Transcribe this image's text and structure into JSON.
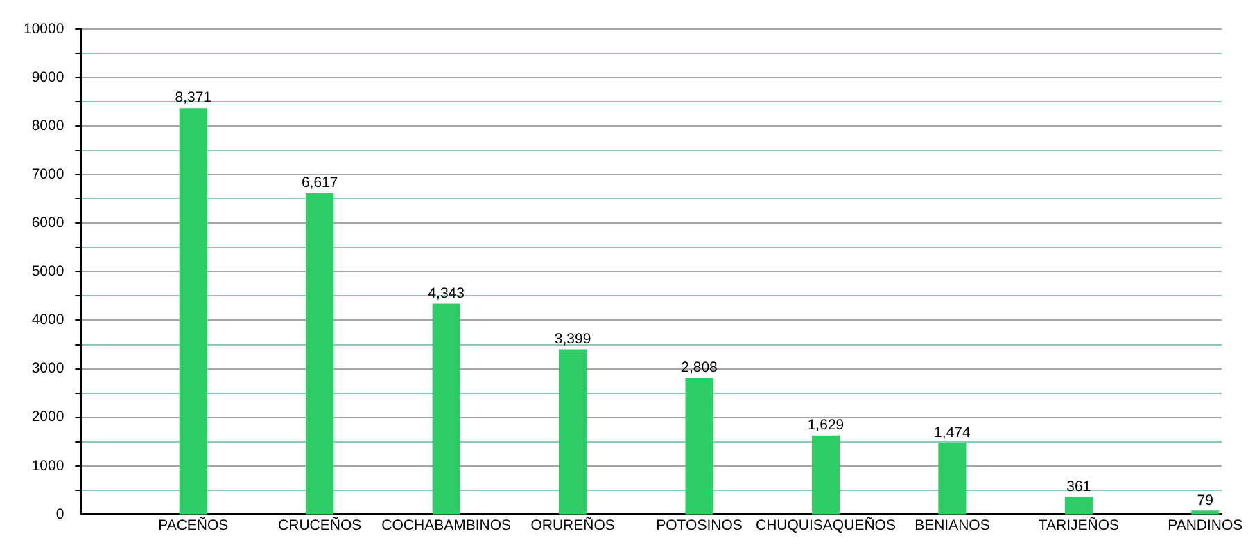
{
  "chart_data": {
    "type": "bar",
    "categories": [
      "PACEÑOS",
      "CRUCEÑOS",
      "COCHABAMBINOS",
      "ORUREÑOS",
      "POTOSINOS",
      "CHUQUISAQUEÑOS",
      "BENIANOS",
      "TARIJEÑOS",
      "PANDINOS"
    ],
    "values": [
      8371,
      6617,
      4343,
      3399,
      2808,
      1629,
      1474,
      361,
      79
    ],
    "value_labels": [
      "8,371",
      "6,617",
      "4,343",
      "3,399",
      "2,808",
      "1,629",
      "1,474",
      "361",
      "79"
    ],
    "color": "#2ecc64",
    "ylim": [
      0,
      10000
    ],
    "yticks": [
      0,
      {
        "value": 500,
        "label": null
      },
      1000,
      {
        "value": 1500,
        "label": null
      },
      2000,
      {
        "value": 2500,
        "label": null
      },
      3000,
      {
        "value": 3500,
        "label": null
      },
      4000,
      {
        "value": 4500,
        "label": null
      },
      5000,
      {
        "value": 5500,
        "label": null
      },
      6000,
      {
        "value": 6500,
        "label": null
      },
      7000,
      {
        "value": 7500,
        "label": null
      },
      8000,
      {
        "value": 8500,
        "label": null
      },
      9000,
      {
        "value": 9500,
        "label": null
      },
      10000
    ],
    "grid": "y"
  }
}
